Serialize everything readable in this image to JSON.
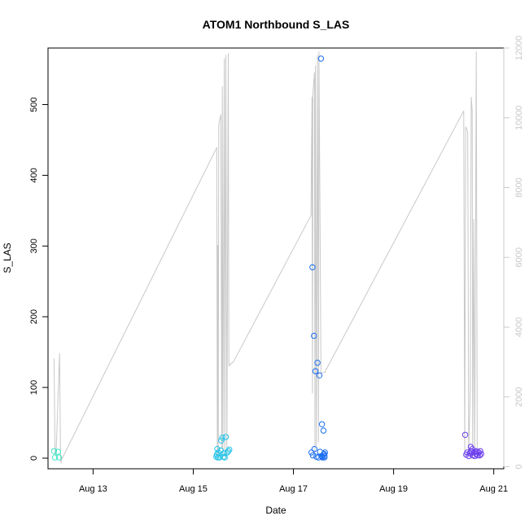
{
  "chart_data": {
    "type": "scatter",
    "title": "ATOM1 Northbound S_LAS",
    "xlabel": "Date",
    "ylabel": "S_LAS",
    "x_unit": "days in August (fractional)",
    "xlim": [
      12.1,
      21.2
    ],
    "ylim": [
      -15,
      580
    ],
    "y2lim": [
      -60,
      12000
    ],
    "grid": false,
    "legend": "none",
    "x_ticks": [
      {
        "value": 13,
        "label": "Aug 13"
      },
      {
        "value": 15,
        "label": "Aug 15"
      },
      {
        "value": 17,
        "label": "Aug 17"
      },
      {
        "value": 19,
        "label": "Aug 19"
      },
      {
        "value": 21,
        "label": "Aug 21"
      }
    ],
    "y_ticks": [
      0,
      100,
      200,
      300,
      400,
      500
    ],
    "y2_ticks": [
      0,
      2000,
      4000,
      6000,
      8000,
      10000,
      12000
    ],
    "colors": {
      "axis": "#000000",
      "secondary_axis": "#c8c8c8",
      "line": "#c8c8c8"
    },
    "secondary_line": {
      "axis": "right",
      "color": "#c8c8c8",
      "x": [
        12.22,
        12.24,
        12.26,
        12.33,
        12.35,
        12.36,
        12.37,
        15.47,
        15.48,
        15.49,
        15.5,
        15.51,
        15.55,
        15.57,
        15.58,
        15.59,
        15.62,
        15.63,
        15.65,
        15.67,
        15.7,
        15.71,
        15.73,
        15.74,
        15.75,
        15.8,
        17.35,
        17.37,
        17.38,
        17.39,
        17.42,
        17.43,
        17.44,
        17.46,
        17.48,
        17.5,
        17.51,
        17.55,
        17.57,
        17.58,
        17.61,
        17.63,
        17.65,
        17.66,
        20.4,
        20.42,
        20.44,
        20.48,
        20.5,
        20.53,
        20.55,
        20.57,
        20.58,
        20.6,
        20.62,
        20.65,
        20.67,
        20.7,
        20.72,
        20.75
      ],
      "y": [
        3100,
        400,
        300,
        3250,
        250,
        100,
        200,
        9150,
        200,
        6350,
        300,
        9800,
        10100,
        500,
        10900,
        200,
        11700,
        300,
        11800,
        200,
        11850,
        2900,
        2900,
        2950,
        2950,
        3000,
        7200,
        10600,
        2100,
        10700,
        11300,
        400,
        11500,
        600,
        11800,
        700,
        11900,
        2700,
        2700,
        2700,
        2700,
        2700,
        2800,
        2800,
        10200,
        300,
        9750,
        9600,
        300,
        2200,
        10600,
        10200,
        300,
        7100,
        300,
        11900,
        300,
        300,
        300,
        300
      ]
    },
    "series": [
      {
        "color": "#40e8c8",
        "x": [
          12.22,
          12.24,
          12.3,
          12.32
        ],
        "y": [
          10,
          1,
          9,
          1
        ]
      },
      {
        "color": "#20c4e8",
        "x": [
          15.46,
          15.47,
          15.48,
          15.49,
          15.5,
          15.52,
          15.55,
          15.56,
          15.58,
          15.6,
          15.61,
          15.63,
          15.65,
          15.68,
          15.7,
          15.72
        ],
        "y": [
          2,
          5,
          13,
          1,
          8,
          1,
          11,
          25,
          29,
          2,
          7,
          1,
          30,
          8,
          10,
          12
        ]
      },
      {
        "color": "#1a6ef0",
        "x": [
          17.36,
          17.38,
          17.39,
          17.41,
          17.42,
          17.44,
          17.46,
          17.48,
          17.5,
          17.52,
          17.53,
          17.55,
          17.56,
          17.57,
          17.58,
          17.6,
          17.61,
          17.62,
          17.63,
          17.58,
          17.6,
          17.62
        ],
        "y": [
          8,
          270,
          4,
          173,
          13,
          123,
          2,
          135,
          1,
          117,
          9,
          565,
          3,
          48,
          1,
          39,
          6,
          1,
          8,
          2,
          5,
          3
        ]
      },
      {
        "color": "#6a3cf0",
        "x": [
          20.43,
          20.45,
          20.47,
          20.5,
          20.52,
          20.54,
          20.55,
          20.57,
          20.58,
          20.6,
          20.62,
          20.64,
          20.65,
          20.67,
          20.68,
          20.7,
          20.72,
          20.73,
          20.75
        ],
        "y": [
          33,
          5,
          8,
          3,
          7,
          16,
          10,
          13,
          4,
          8,
          3,
          10,
          6,
          9,
          4,
          8,
          4,
          10,
          6
        ]
      }
    ]
  }
}
